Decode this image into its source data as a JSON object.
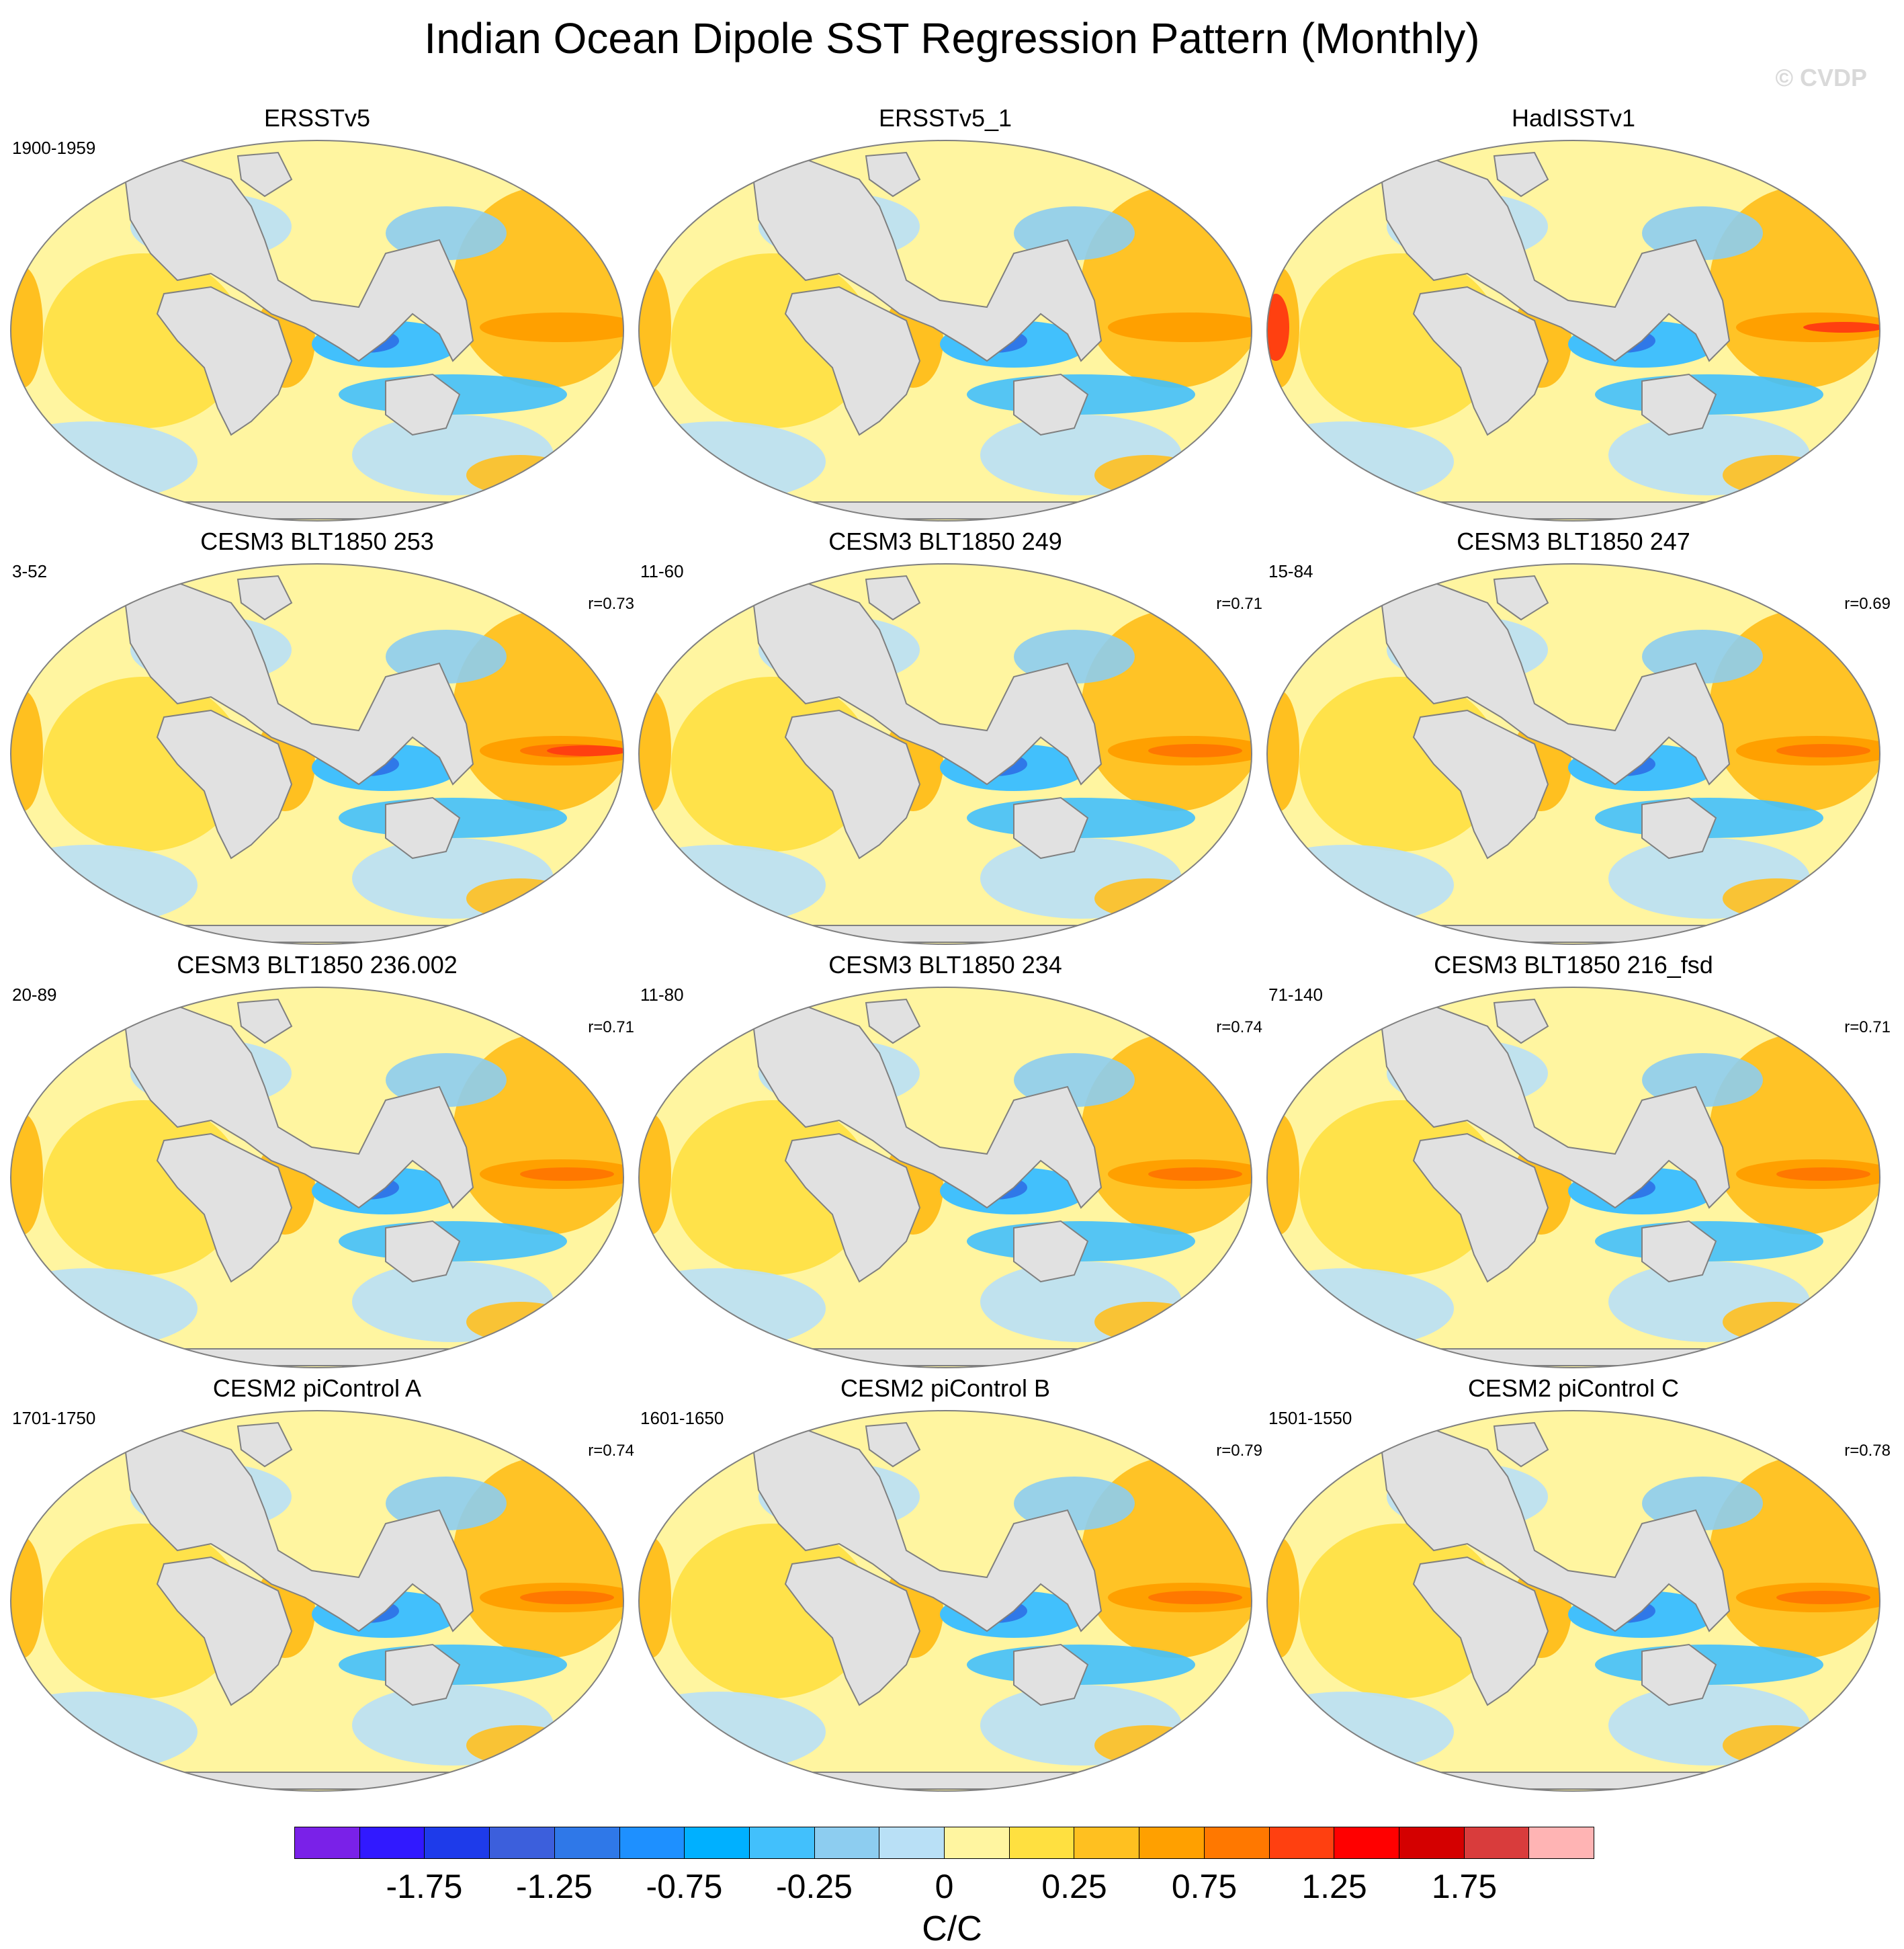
{
  "title": "Indian Ocean Dipole SST Regression Pattern (Monthly)",
  "watermark": "© CVDP",
  "panels": [
    {
      "name": "ERSSTv5",
      "years": "1900-1959",
      "corr": ""
    },
    {
      "name": "ERSSTv5_1",
      "years": "",
      "corr": ""
    },
    {
      "name": "HadISSTv1",
      "years": "",
      "corr": ""
    },
    {
      "name": "CESM3 BLT1850 253",
      "years": "3-52",
      "corr": "r=0.73"
    },
    {
      "name": "CESM3 BLT1850 249",
      "years": "11-60",
      "corr": "r=0.71"
    },
    {
      "name": "CESM3 BLT1850 247",
      "years": "15-84",
      "corr": "r=0.69"
    },
    {
      "name": "CESM3 BLT1850 236.002",
      "years": "20-89",
      "corr": "r=0.71"
    },
    {
      "name": "CESM3 BLT1850 234",
      "years": "11-80",
      "corr": "r=0.74"
    },
    {
      "name": "CESM3 BLT1850 216_fsd",
      "years": "71-140",
      "corr": "r=0.71"
    },
    {
      "name": "CESM2 piControl A",
      "years": "1701-1750",
      "corr": "r=0.74"
    },
    {
      "name": "CESM2 piControl B",
      "years": "1601-1650",
      "corr": "r=0.79"
    },
    {
      "name": "CESM2 piControl C",
      "years": "1501-1550",
      "corr": "r=0.78"
    }
  ],
  "colorbar": {
    "colors": [
      "#7a21e8",
      "#3119ff",
      "#1e3bea",
      "#3c5fdc",
      "#2f78e8",
      "#1e90ff",
      "#00b0ff",
      "#42c0fc",
      "#8dcdf0",
      "#b9e0f6",
      "#fff5a0",
      "#ffe040",
      "#ffc020",
      "#ffa000",
      "#ff7800",
      "#ff4010",
      "#ff0000",
      "#d40000",
      "#d93c3c",
      "#ffb4b4"
    ],
    "tick_labels": [
      "-1.75",
      "-1.25",
      "-0.75",
      "-0.25",
      "0",
      "0.25",
      "0.75",
      "1.25",
      "1.75"
    ],
    "units": "C/C"
  },
  "legend_colors": {
    "land": "#e1e1e1",
    "coast": "#808080"
  }
}
